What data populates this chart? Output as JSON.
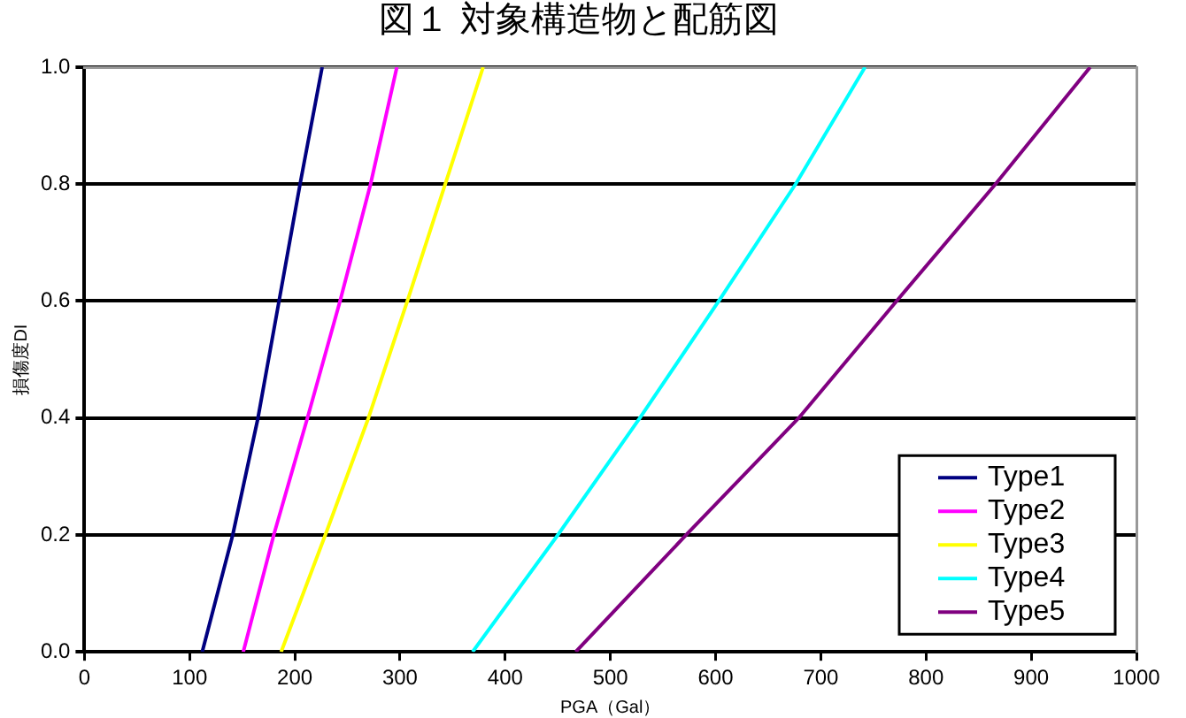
{
  "chart_data": {
    "type": "line",
    "title": "図１ 対象構造物と配筋図",
    "xlabel": "PGA（Gal）",
    "ylabel": "損傷度DI",
    "xlim": [
      0,
      1000
    ],
    "xticks": [
      0,
      100,
      200,
      300,
      400,
      500,
      600,
      700,
      800,
      900,
      1000
    ],
    "ylim": [
      0,
      1
    ],
    "yticks": [
      {
        "value": 0,
        "label": "0.0"
      },
      0.2,
      0.4,
      0.6,
      0.8,
      {
        "value": 1,
        "label": "1.0"
      }
    ],
    "grid": "y",
    "legend": "bottom right",
    "marker": "none",
    "line_style": "solid",
    "series": [
      {
        "name": "Type1",
        "color": "#000080",
        "x": [
          112,
          141,
          165,
          185,
          205,
          226
        ],
        "values": [
          0,
          0.2,
          0.4,
          0.6,
          0.8,
          1
        ]
      },
      {
        "name": "Type2",
        "color": "#ff00ff",
        "x": [
          151,
          180,
          212,
          243,
          272,
          297
        ],
        "values": [
          0,
          0.2,
          0.4,
          0.6,
          0.8,
          1
        ]
      },
      {
        "name": "Type3",
        "color": "#ffff00",
        "x": [
          187,
          229,
          270,
          307,
          343,
          379
        ],
        "values": [
          0,
          0.2,
          0.4,
          0.6,
          0.8,
          1
        ]
      },
      {
        "name": "Type4",
        "color": "#00ffff",
        "x": [
          369,
          450,
          528,
          603,
          676,
          742
        ],
        "values": [
          0,
          0.2,
          0.4,
          0.6,
          0.8,
          1
        ]
      },
      {
        "name": "Type5",
        "color": "#800080",
        "x": [
          467,
          572,
          679,
          772,
          866,
          956
        ],
        "values": [
          0,
          0.2,
          0.4,
          0.6,
          0.8,
          1
        ]
      }
    ]
  }
}
